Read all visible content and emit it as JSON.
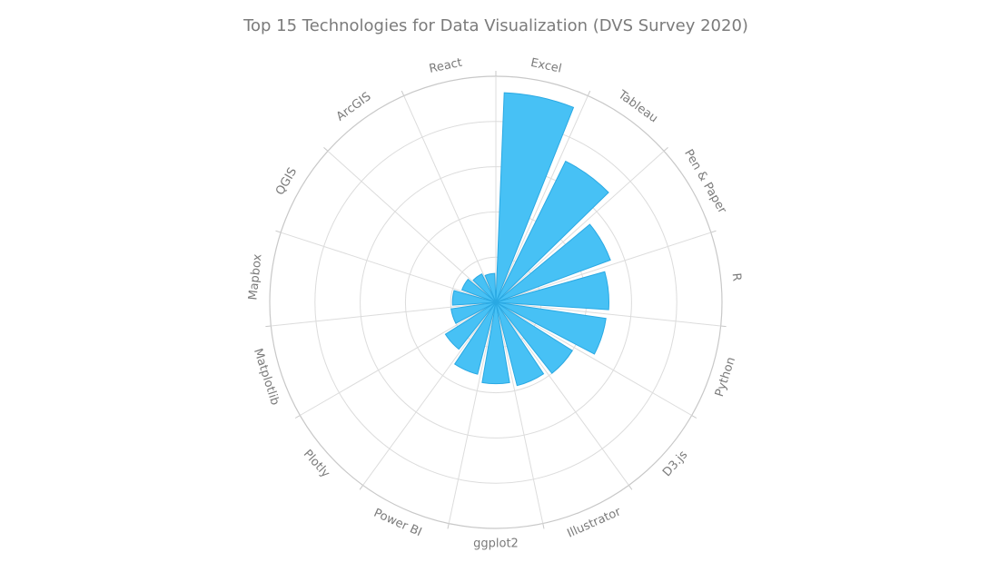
{
  "chart_data": {
    "type": "polar-bar",
    "title": "Top 15 Technologies for Data Visualization (DVS Survey 2020)",
    "categories": [
      "Excel",
      "Tableau",
      "Pen & Paper",
      "R",
      "Python",
      "D3.js",
      "Illustrator",
      "ggplot2",
      "Power BI",
      "Plotly",
      "Matplotlib",
      "Mapbox",
      "QGIS",
      "ArcGIS",
      "React"
    ],
    "values": [
      232,
      174,
      135,
      125,
      123,
      100,
      95,
      90,
      82,
      66,
      50,
      48,
      40,
      35,
      32
    ],
    "rmax": 250,
    "grid_rings": [
      50,
      100,
      150,
      200,
      250
    ],
    "grid": true,
    "legend": "none",
    "bar_color": "#47c1f5",
    "bar_stroke": "#2aa9e3",
    "grid_color": "#dcdcdc",
    "label_color": "#7b7b7b"
  }
}
